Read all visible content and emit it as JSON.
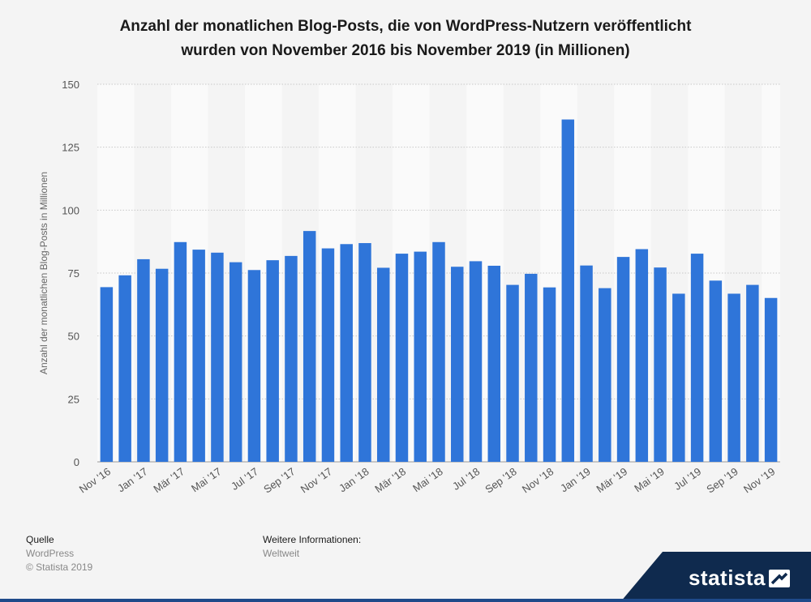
{
  "title_lines": [
    "Anzahl der monatlichen Blog-Posts, die von WordPress-Nutzern veröffentlicht",
    "wurden von November 2016 bis November 2019 (in Millionen)"
  ],
  "footer": {
    "source_label": "Quelle",
    "source_name": "WordPress",
    "copyright": "© Statista 2019",
    "info_label": "Weitere Informationen:",
    "info_value": "Weltweit"
  },
  "brand": {
    "name": "statista"
  },
  "colors": {
    "bar": "#2f75d9",
    "background": "#f4f4f4",
    "band": "#fafafa",
    "brand": "#0f2a4e"
  },
  "chart_data": {
    "type": "bar",
    "title": "Anzahl der monatlichen Blog-Posts, die von WordPress-Nutzern veröffentlicht wurden von November 2016 bis November 2019 (in Millionen)",
    "ylabel": "Anzahl der monatlichen Blog-Posts in Millionen",
    "xlabel": "",
    "ylim": [
      0,
      150
    ],
    "yticks": [
      0,
      25,
      50,
      75,
      100,
      125,
      150
    ],
    "grid": true,
    "categories": [
      "Nov '16",
      "Dez '16",
      "Jan '17",
      "Feb '17",
      "Mär '17",
      "Apr '17",
      "Mai '17",
      "Jun '17",
      "Jul '17",
      "Aug '17",
      "Sep '17",
      "Okt '17",
      "Nov '17",
      "Dez '17",
      "Jan '18",
      "Feb '18",
      "Mär '18",
      "Apr '18",
      "Mai '18",
      "Jun '18",
      "Jul '18",
      "Aug '18",
      "Sep '18",
      "Okt '18",
      "Nov '18",
      "Dez '18",
      "Jan '19",
      "Feb '19",
      "Mär '19",
      "Apr '19",
      "Mai '19",
      "Jun '19",
      "Jul '19",
      "Aug '19",
      "Sep '19",
      "Okt '19",
      "Nov '19"
    ],
    "xtick_labels": [
      "Nov '16",
      "Jan '17",
      "Mär '17",
      "Mai '17",
      "Jul '17",
      "Sep '17",
      "Nov '17",
      "Jan '18",
      "Mär '18",
      "Mai '18",
      "Jul '18",
      "Sep '18",
      "Nov '18",
      "Jan '19",
      "Mär '19",
      "Mai '19",
      "Jul '19",
      "Sep '19",
      "Nov '19"
    ],
    "values": [
      69.4,
      74.1,
      80.5,
      76.7,
      87.3,
      84.3,
      83.1,
      79.3,
      76.2,
      80.1,
      81.8,
      91.7,
      84.8,
      86.5,
      86.9,
      77.1,
      82.7,
      83.5,
      87.3,
      77.5,
      79.7,
      77.9,
      70.3,
      74.7,
      69.3,
      136.0,
      78.0,
      69.0,
      81.4,
      84.5,
      77.2,
      66.8,
      82.7,
      72.0,
      66.8,
      70.3,
      65.1
    ]
  }
}
